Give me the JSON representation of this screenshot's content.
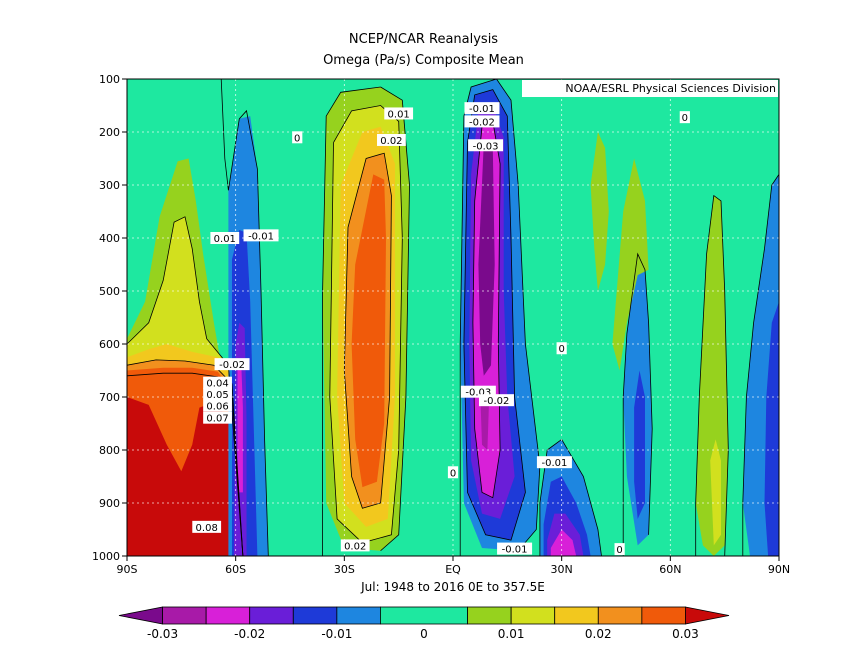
{
  "figure": {
    "title": "NCEP/NCAR Reanalysis",
    "subtitle": "Omega (Pa/s) Composite Mean",
    "credit": "NOAA/ESRL Physical Sciences Division",
    "footer": "Jul: 1948 to 2016 0E to 357.5E"
  },
  "chart_data": {
    "type": "heatmap",
    "title": "NCEP/NCAR Reanalysis",
    "subtitle": "Omega (Pa/s) Composite Mean",
    "xlabel": "",
    "ylabel": "",
    "x_tick_labels": [
      "90S",
      "60S",
      "30S",
      "EQ",
      "30N",
      "60N",
      "90N"
    ],
    "x_tick_values": [
      -90,
      -60,
      -30,
      0,
      30,
      60,
      90
    ],
    "xlim": [
      -90,
      90
    ],
    "y_tick_labels": [
      "100",
      "200",
      "300",
      "400",
      "500",
      "600",
      "700",
      "800",
      "900",
      "1000"
    ],
    "y_tick_values": [
      100,
      200,
      300,
      400,
      500,
      600,
      700,
      800,
      900,
      1000
    ],
    "ylim": [
      1000,
      100
    ],
    "grid": true,
    "colorbar": {
      "tick_labels": [
        "-0.03",
        "-0.02",
        "-0.01",
        "0",
        "0.01",
        "0.02",
        "0.03"
      ],
      "tick_values": [
        -0.03,
        -0.02,
        -0.01,
        0,
        0.01,
        0.02,
        0.03
      ],
      "levels": [
        -0.035,
        -0.03,
        -0.025,
        -0.02,
        -0.015,
        -0.01,
        -0.005,
        0.005,
        0.01,
        0.015,
        0.02,
        0.025,
        0.03,
        0.035
      ],
      "colors": [
        "#7a0a8c",
        "#a81aa8",
        "#d820d8",
        "#6a1ed8",
        "#1e3ad8",
        "#1e86e0",
        "#1ee8a0",
        "#96d21e",
        "#d2e01e",
        "#f2c81e",
        "#f2901e",
        "#f05a0a",
        "#c80a0a"
      ]
    },
    "contour_labels": [
      {
        "text": "0.01",
        "lon": -63,
        "p": 400
      },
      {
        "text": "-0.01",
        "lon": -53,
        "p": 395
      },
      {
        "text": "0",
        "lon": -43,
        "p": 210
      },
      {
        "text": "0.01",
        "lon": -15,
        "p": 165
      },
      {
        "text": "0.02",
        "lon": -17,
        "p": 215
      },
      {
        "text": "-0.01",
        "lon": 8,
        "p": 155
      },
      {
        "text": "-0.02",
        "lon": 8,
        "p": 180
      },
      {
        "text": "-0.03",
        "lon": 9,
        "p": 225
      },
      {
        "text": "-0.02",
        "lon": -61,
        "p": 638
      },
      {
        "text": "0.04",
        "lon": -65,
        "p": 673
      },
      {
        "text": "0.05",
        "lon": -65,
        "p": 694
      },
      {
        "text": "0.06",
        "lon": -65,
        "p": 716
      },
      {
        "text": "0.07",
        "lon": -65,
        "p": 739
      },
      {
        "text": "0.08",
        "lon": -68,
        "p": 945
      },
      {
        "text": "-0.03",
        "lon": 7,
        "p": 690
      },
      {
        "text": "-0.02",
        "lon": 12,
        "p": 706
      },
      {
        "text": "0",
        "lon": 30,
        "p": 608
      },
      {
        "text": "-0.01",
        "lon": 28,
        "p": 823
      },
      {
        "text": "0.02",
        "lon": -27,
        "p": 980
      },
      {
        "text": "0",
        "lon": 0,
        "p": 842
      },
      {
        "text": "-0.01",
        "lon": 17,
        "p": 986
      },
      {
        "text": "0",
        "lon": 46,
        "p": 987
      },
      {
        "text": "0",
        "lon": 64,
        "p": 172
      }
    ]
  }
}
